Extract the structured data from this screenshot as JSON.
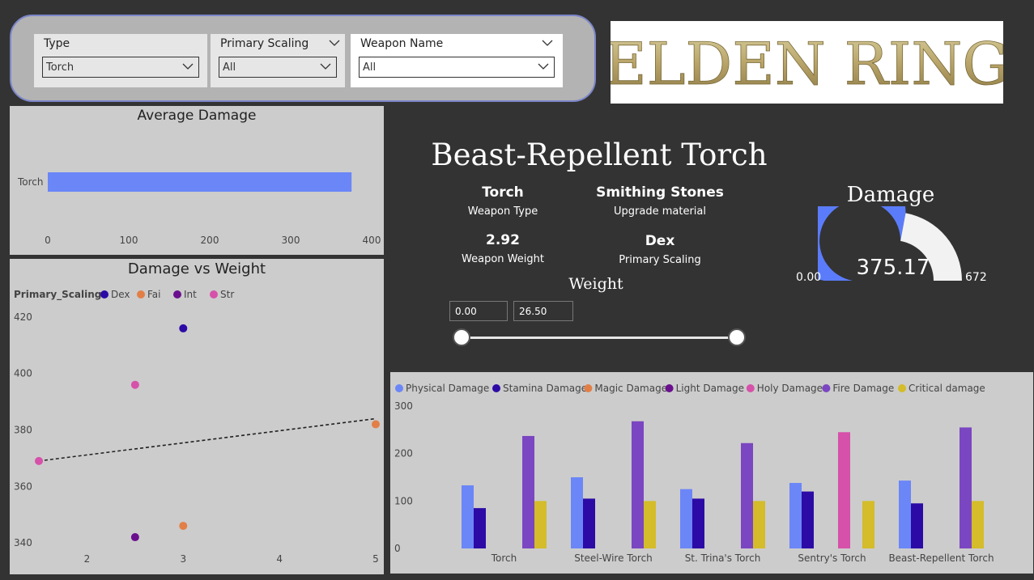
{
  "filters": {
    "type": {
      "title": "Type",
      "value": "Torch"
    },
    "primary_scaling": {
      "title": "Primary Scaling",
      "value": "All"
    },
    "weapon_name": {
      "title": "Weapon Name",
      "value": "All"
    }
  },
  "logo": {
    "text": "ELDEN RING"
  },
  "weapon": {
    "name": "Beast-Repellent Torch",
    "type_value": "Torch",
    "type_label": "Weapon Type",
    "material_value": "Smithing Stones",
    "material_label": "Upgrade material",
    "weight_value": "2.92",
    "weight_label": "Weapon Weight",
    "scaling_value": "Dex",
    "scaling_label": "Primary Scaling"
  },
  "weight_slider": {
    "title": "Weight",
    "min": "0.00",
    "max": "26.50",
    "low_fraction": 0,
    "high_fraction": 1
  },
  "gauge": {
    "title": "Damage",
    "value": "375.17",
    "min": "0.00",
    "max": "672",
    "value_num": 375.17,
    "min_num": 0,
    "max_num": 672,
    "fill_color": "#5b7cfa",
    "track_color": "#f2f2f2"
  },
  "colors": {
    "blue": "#6b86f7",
    "navy": "#2c0aa6",
    "orange": "#e27f47",
    "purple": "#6a0f8e",
    "pink": "#d651a9",
    "violet": "#7b46c1",
    "gold": "#d4bc2a"
  },
  "chart_data": [
    {
      "type": "bar",
      "orientation": "horizontal",
      "title": "Average Damage",
      "categories": [
        "Torch"
      ],
      "values": [
        375.17
      ],
      "xlim": [
        0,
        400
      ],
      "xticks": [
        0,
        100,
        200,
        300,
        400
      ],
      "color": "#6b86f7"
    },
    {
      "type": "scatter",
      "title": "Damage vs Weight",
      "legend_title": "Primary_Scaling",
      "legend": [
        {
          "name": "Dex",
          "color": "#2c0aa6"
        },
        {
          "name": "Fai",
          "color": "#e27f47"
        },
        {
          "name": "Int",
          "color": "#6a0f8e"
        },
        {
          "name": "Str",
          "color": "#d651a9"
        }
      ],
      "points": [
        {
          "x": 3.0,
          "y": 416,
          "series": "Dex"
        },
        {
          "x": 2.5,
          "y": 396,
          "series": "Str"
        },
        {
          "x": 5.0,
          "y": 382,
          "series": "Fai"
        },
        {
          "x": 1.5,
          "y": 369,
          "series": "Str"
        },
        {
          "x": 3.0,
          "y": 346,
          "series": "Fai"
        },
        {
          "x": 2.5,
          "y": 342,
          "series": "Int"
        }
      ],
      "trendline": [
        [
          1.5,
          369
        ],
        [
          5.0,
          384
        ]
      ],
      "xlim": [
        1.5,
        5
      ],
      "ylim": [
        338,
        422
      ],
      "xticks": [
        2,
        3,
        4,
        5
      ],
      "yticks": [
        340,
        360,
        380,
        400,
        420
      ]
    },
    {
      "type": "bar",
      "title": "",
      "categories": [
        "Torch",
        "Steel-Wire Torch",
        "St. Trina's Torch",
        "Sentry's Torch",
        "Beast-Repellent Torch"
      ],
      "series": [
        {
          "name": "Physical Damage",
          "color": "#6b86f7",
          "values": [
            133,
            150,
            125,
            138,
            143
          ]
        },
        {
          "name": "Stamina Damage",
          "color": "#2c0aa6",
          "values": [
            85,
            105,
            105,
            120,
            95
          ]
        },
        {
          "name": "Magic Damage",
          "color": "#e27f47",
          "values": [
            0,
            0,
            0,
            0,
            0
          ]
        },
        {
          "name": "Light Damage",
          "color": "#6a0f8e",
          "values": [
            0,
            0,
            0,
            0,
            0
          ]
        },
        {
          "name": "Holy Damage",
          "color": "#d651a9",
          "values": [
            0,
            0,
            0,
            245,
            0
          ]
        },
        {
          "name": "Fire Damage",
          "color": "#7b46c1",
          "values": [
            237,
            268,
            222,
            0,
            255
          ]
        },
        {
          "name": "Critical damage",
          "color": "#d4bc2a",
          "values": [
            100,
            100,
            100,
            100,
            100
          ]
        }
      ],
      "ylim": [
        0,
        300
      ],
      "yticks": [
        0,
        100,
        200,
        300
      ]
    }
  ]
}
